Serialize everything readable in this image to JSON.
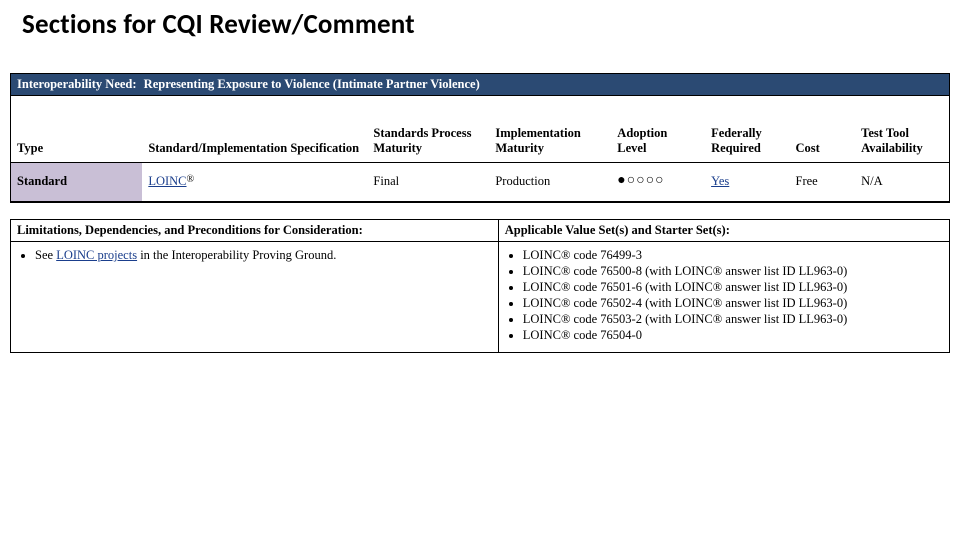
{
  "title": "Sections for CQI Review/Comment",
  "colors": {
    "band_bg": "#2b4a73",
    "band_fg": "#ffffff",
    "type_cell_bg": "#c9bfd6",
    "link_color": "#1a3e8c",
    "border": "#000000",
    "page_bg": "#ffffff"
  },
  "interop": {
    "label": "Interoperability Need:",
    "value": "Representing Exposure to Violence (Intimate Partner Violence)"
  },
  "columns": {
    "type": "Type",
    "spec": "Standard/Implementation Specification",
    "spm": "Standards Process Maturity",
    "im": "Implementation Maturity",
    "al": "Adoption Level",
    "fr": "Federally Required",
    "cost": "Cost",
    "tta": "Test Tool Availability"
  },
  "row": {
    "type": "Standard",
    "spec_link": "LOINC",
    "spec_reg": "®",
    "spm": "Final",
    "im": "Production",
    "adoption": {
      "filled": 1,
      "total": 5
    },
    "fr_link": "Yes",
    "cost": "Free",
    "tta": "N/A"
  },
  "lower": {
    "left_head": "Limitations, Dependencies, and Preconditions for Consideration:",
    "right_head": "Applicable Value Set(s) and Starter Set(s):",
    "left_item_prefix": "See ",
    "left_item_link": "LOINC projects",
    "left_item_suffix": " in the Interoperability Proving Ground.",
    "right_items": [
      "LOINC® code 76499-3",
      "LOINC® code 76500-8 (with LOINC® answer list ID LL963-0)",
      "LOINC® code 76501-6 (with LOINC® answer list ID LL963-0)",
      "LOINC® code 76502-4 (with LOINC® answer list ID LL963-0)",
      "LOINC® code 76503-2 (with LOINC® answer list ID LL963-0)",
      "LOINC® code 76504-0"
    ]
  }
}
